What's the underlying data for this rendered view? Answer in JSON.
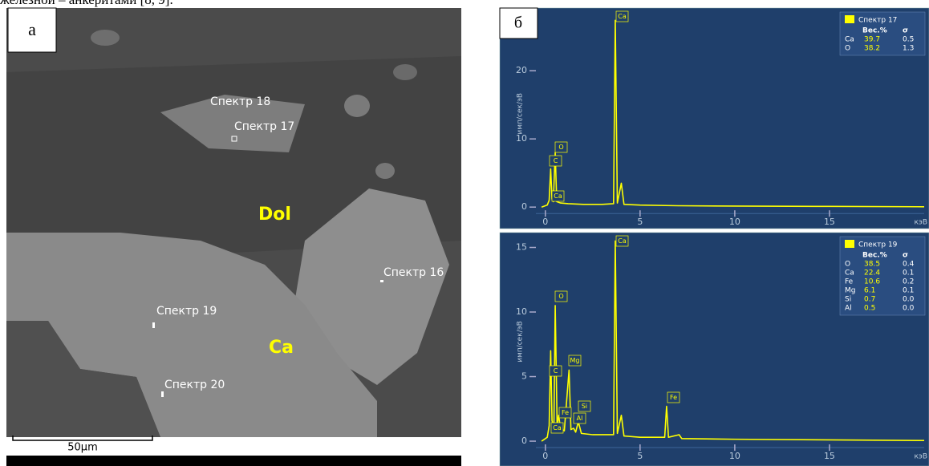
{
  "header_text": "железной – анкеритами [8, 9].",
  "panel_a": {
    "label": "а",
    "labels": [
      "Спектр 18",
      "Спектр 17",
      "Dol",
      "Спектр 16",
      "Спектр 19",
      "Ca",
      "Спектр 20"
    ],
    "scale_bar": "50µm"
  },
  "chart_data": [
    {
      "type": "line",
      "panel_label": "б",
      "y_label": "имп/сек/эВ",
      "x_label": "кэВ",
      "x": [
        -0.2,
        0.1,
        0.2,
        0.28,
        0.35,
        0.42,
        0.52,
        0.6,
        0.8,
        1.2,
        2,
        3,
        3.6,
        3.69,
        3.8,
        4.01,
        4.15,
        5,
        7,
        10,
        15,
        20
      ],
      "series": [
        {
          "name": "Спектр 17",
          "color": "#ffff00",
          "values": [
            0,
            0.3,
            1.0,
            5.6,
            1.2,
            0.8,
            8,
            0.8,
            0.6,
            0.5,
            0.4,
            0.4,
            0.5,
            27.4,
            0.6,
            3.5,
            0.4,
            0.3,
            0.2,
            0.15,
            0.1,
            0.05
          ]
        }
      ],
      "xlim": [
        -0.5,
        20
      ],
      "ylim": [
        -0.8,
        28.2
      ],
      "xticks": [
        0,
        5,
        10,
        15
      ],
      "yticks": [
        0,
        10,
        20
      ],
      "peak_labels": [
        "Ca",
        "O",
        "C",
        "Ca"
      ],
      "table": {
        "header": [
          "Вес.%",
          "σ"
        ],
        "rows": [
          [
            "Ca",
            "39.7",
            "0.5"
          ],
          [
            "O",
            "38.2",
            "1.3"
          ]
        ]
      }
    },
    {
      "type": "line",
      "y_label": "имп/сек/эВ",
      "x_label": "кэВ",
      "x": [
        -0.2,
        0.1,
        0.2,
        0.28,
        0.35,
        0.45,
        0.52,
        0.62,
        0.7,
        0.8,
        1.0,
        1.25,
        1.35,
        1.49,
        1.6,
        1.74,
        1.9,
        2.5,
        3.6,
        3.69,
        3.8,
        4.01,
        4.15,
        5,
        6.3,
        6.4,
        6.5,
        7.06,
        7.2,
        10,
        15,
        20
      ],
      "series": [
        {
          "name": "Спектр 19",
          "color": "#ffff00",
          "values": [
            0,
            0.3,
            1.2,
            7,
            1.6,
            1.0,
            10.5,
            1.2,
            2.0,
            1.0,
            0.8,
            5.5,
            0.9,
            1.0,
            0.7,
            1.5,
            0.6,
            0.5,
            0.5,
            15.5,
            0.6,
            2.0,
            0.4,
            0.3,
            0.3,
            2.7,
            0.3,
            0.5,
            0.2,
            0.15,
            0.1,
            0.05
          ]
        }
      ],
      "xlim": [
        -0.5,
        20
      ],
      "ylim": [
        -0.6,
        16
      ],
      "xticks": [
        0,
        5,
        10,
        15
      ],
      "yticks": [
        0,
        5,
        10,
        15
      ],
      "peak_labels": [
        "Ca",
        "O",
        "Mg",
        "C",
        "Si",
        "Fe",
        "Al",
        "Ca",
        "Fe"
      ],
      "table": {
        "header": [
          "Вес.%",
          "σ"
        ],
        "rows": [
          [
            "O",
            "38.5",
            "0.4"
          ],
          [
            "Ca",
            "22.4",
            "0.1"
          ],
          [
            "Fe",
            "10.6",
            "0.2"
          ],
          [
            "Mg",
            "6.1",
            "0.1"
          ],
          [
            "Si",
            "0.7",
            "0.0"
          ],
          [
            "Al",
            "0.5",
            "0.0"
          ]
        ]
      }
    }
  ]
}
